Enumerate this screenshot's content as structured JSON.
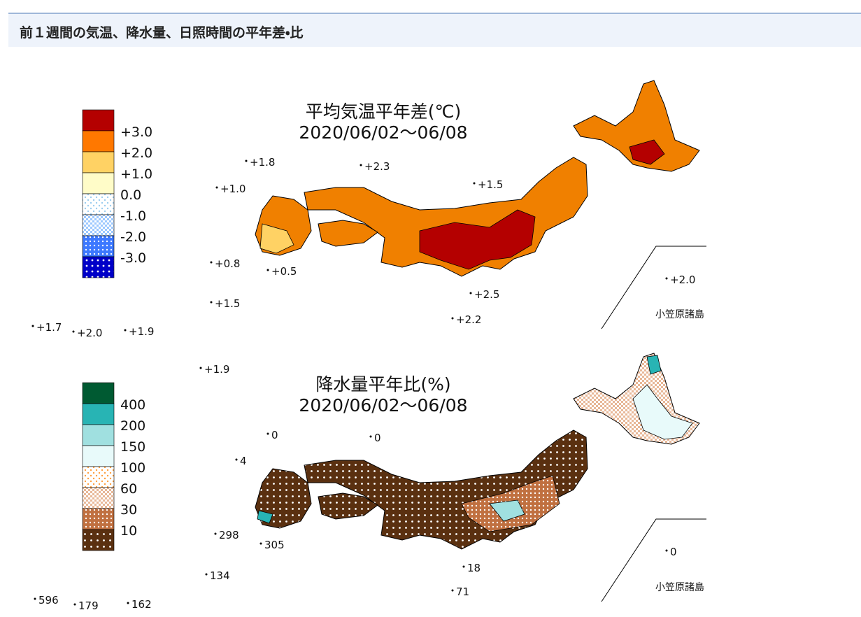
{
  "header": {
    "title": "前１週間の気温、降水量、日照時間の平年差・比"
  },
  "panels": [
    {
      "title": "平均気温平年差(℃)",
      "period": "2020/06/02～06/08",
      "legend": [
        "+3.0",
        "+2.0",
        "+1.0",
        "0.0",
        "-1.0",
        "-2.0",
        "-3.0"
      ],
      "stations": [
        "+1.8",
        "+2.3",
        "+1.0",
        "+1.5",
        "+0.8",
        "+0.5",
        "+2.0",
        "+2.5",
        "+2.2",
        "+1.5",
        "+1.7",
        "+2.0",
        "+1.9",
        "+1.9"
      ],
      "inset_label": "小笠原諸島"
    },
    {
      "title": "降水量平年比(%)",
      "period": "2020/06/02～06/08",
      "legend": [
        "400",
        "200",
        "150",
        "100",
        "60",
        "30",
        "10"
      ],
      "stations": [
        "0",
        "0",
        "4",
        "298",
        "305",
        "0",
        "18",
        "71",
        "134",
        "596",
        "179",
        "162"
      ],
      "inset_label": "小笠原諸島"
    }
  ]
}
